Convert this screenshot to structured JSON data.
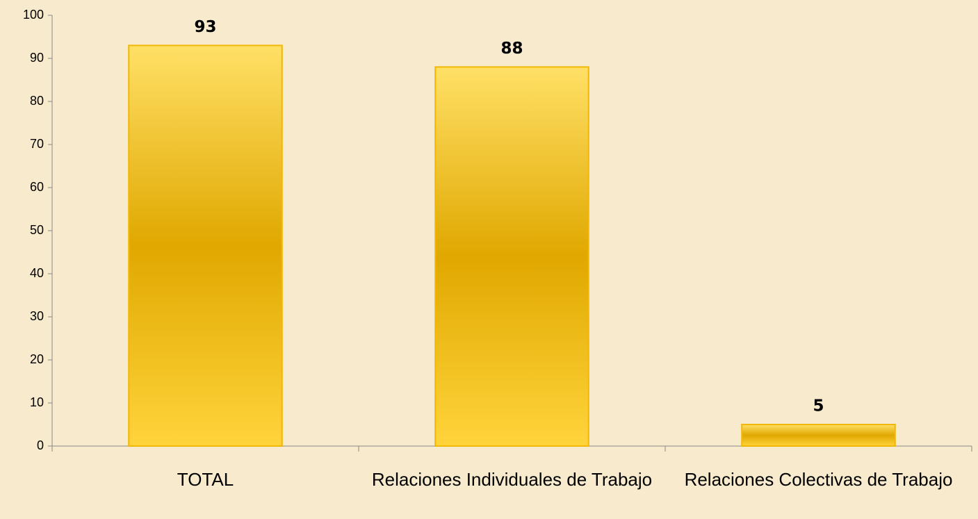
{
  "chart_data": {
    "type": "bar",
    "categories": [
      "TOTAL",
      "Relaciones Individuales de Trabajo",
      "Relaciones Colectivas de Trabajo"
    ],
    "values": [
      93,
      88,
      5
    ],
    "color": "#f2b705",
    "ylim": [
      0,
      100
    ],
    "yticks": [
      0,
      10,
      20,
      30,
      40,
      50,
      60,
      70,
      80,
      90,
      100
    ],
    "grid": false
  }
}
